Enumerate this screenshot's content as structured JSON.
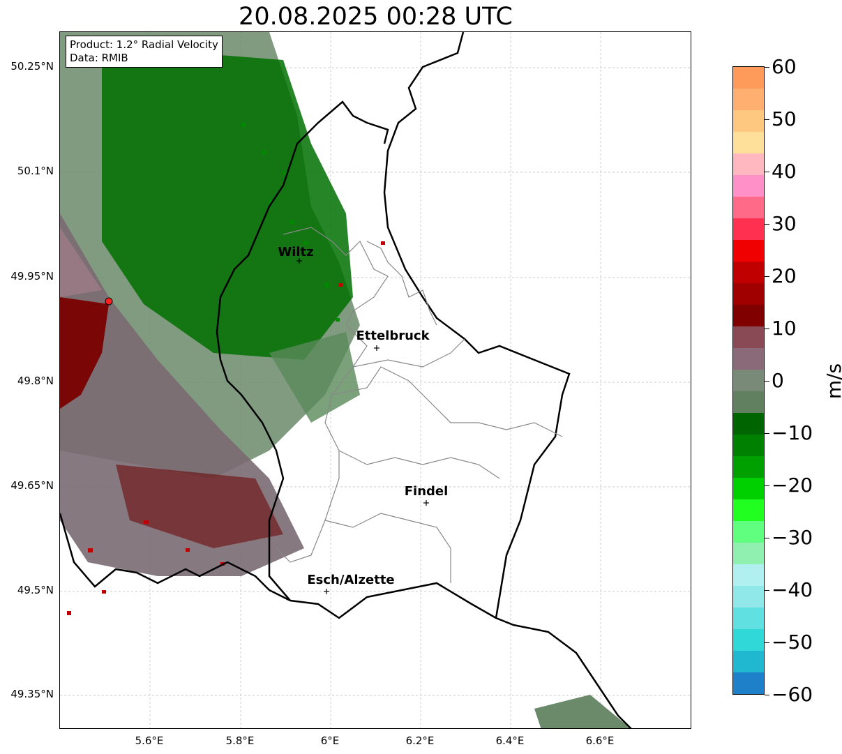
{
  "title": "20.08.2025 00:28 UTC",
  "info_box": {
    "product": "Product: 1.2° Radial Velocity",
    "data_source": "Data: RMIB"
  },
  "axes": {
    "lat_ticks": [
      "50.25°N",
      "50.1°N",
      "49.95°N",
      "49.8°N",
      "49.65°N",
      "49.5°N",
      "49.35°N"
    ],
    "lon_ticks": [
      "5.6°E",
      "5.8°E",
      "6°E",
      "6.2°E",
      "6.4°E",
      "6.6°E"
    ]
  },
  "cities": [
    {
      "name": "Wiltz"
    },
    {
      "name": "Ettelbruck"
    },
    {
      "name": "Findel"
    },
    {
      "name": "Esch/Alzette"
    }
  ],
  "colorbar": {
    "unit": "m/s",
    "ticks": [
      "60",
      "50",
      "40",
      "30",
      "20",
      "10",
      "0",
      "−10",
      "−20",
      "−30",
      "−40",
      "−50",
      "−60"
    ],
    "colors": [
      "#ff9b5a",
      "#ffb070",
      "#ffc880",
      "#ffe09a",
      "#ffb8c0",
      "#ff90c8",
      "#ff6a88",
      "#ff3050",
      "#f00000",
      "#c00000",
      "#a00000",
      "#800000",
      "#8a4a55",
      "#8a6a78",
      "#7a8a78",
      "#608060",
      "#006400",
      "#008000",
      "#00a000",
      "#00d000",
      "#20ff20",
      "#60ff80",
      "#90f0b0",
      "#b0f0f0",
      "#90e8e8",
      "#60e0e0",
      "#30d8d8",
      "#20b8d0",
      "#1e80c8"
    ]
  },
  "radar": {
    "site_marker": "red-dot-icon"
  }
}
